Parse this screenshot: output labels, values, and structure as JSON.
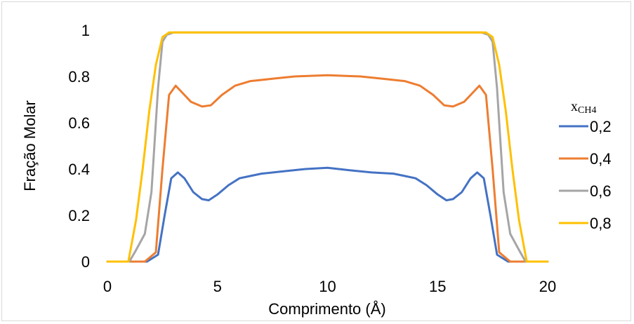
{
  "chart_data": {
    "type": "line",
    "xlabel": "Comprimento (Å)",
    "ylabel": "Fração Molar",
    "xlim": [
      0,
      20
    ],
    "ylim": [
      0,
      1
    ],
    "x_ticks": [
      "0",
      "5",
      "10",
      "15",
      "20"
    ],
    "y_ticks": [
      "0",
      "0.2",
      "0.4",
      "0.6",
      "0.8",
      "1"
    ],
    "legend_title_main": "x",
    "legend_title_sub": "CH4",
    "legend_position": "right",
    "grid": false,
    "series": [
      {
        "name": "0,2",
        "color": "#4472C4",
        "x": [
          0,
          1.8,
          2.3,
          2.6,
          2.9,
          3.2,
          3.5,
          3.9,
          4.3,
          4.6,
          5.0,
          5.5,
          6.0,
          6.5,
          7.0,
          8.0,
          9.0,
          10.0,
          11.0,
          12.0,
          13.0,
          13.5,
          14.0,
          14.5,
          15.0,
          15.4,
          15.7,
          16.1,
          16.5,
          16.8,
          17.1,
          17.4,
          17.7,
          18.2,
          20
        ],
        "y": [
          0,
          0,
          0.03,
          0.2,
          0.36,
          0.385,
          0.36,
          0.3,
          0.27,
          0.265,
          0.29,
          0.33,
          0.36,
          0.37,
          0.38,
          0.39,
          0.4,
          0.405,
          0.395,
          0.385,
          0.38,
          0.37,
          0.36,
          0.33,
          0.29,
          0.265,
          0.27,
          0.3,
          0.36,
          0.385,
          0.36,
          0.2,
          0.03,
          0,
          0
        ]
      },
      {
        "name": "0,4",
        "color": "#ED7D31",
        "x": [
          0,
          1.7,
          2.2,
          2.5,
          2.8,
          3.1,
          3.4,
          3.8,
          4.3,
          4.7,
          5.2,
          5.8,
          6.5,
          7.5,
          8.5,
          10.0,
          11.5,
          12.5,
          13.5,
          14.2,
          14.8,
          15.3,
          15.7,
          16.2,
          16.6,
          16.9,
          17.2,
          17.5,
          17.8,
          18.3,
          20
        ],
        "y": [
          0,
          0,
          0.04,
          0.4,
          0.72,
          0.76,
          0.73,
          0.69,
          0.67,
          0.675,
          0.72,
          0.76,
          0.78,
          0.79,
          0.8,
          0.805,
          0.8,
          0.79,
          0.78,
          0.76,
          0.72,
          0.675,
          0.67,
          0.69,
          0.73,
          0.76,
          0.72,
          0.4,
          0.04,
          0,
          0
        ]
      },
      {
        "name": "0,6",
        "color": "#A5A5A5",
        "x": [
          0,
          1.0,
          1.3,
          1.7,
          2.0,
          2.3,
          2.5,
          2.7,
          3.0,
          4.0,
          10.0,
          16.0,
          17.0,
          17.3,
          17.5,
          17.7,
          18.0,
          18.3,
          18.7,
          19.0,
          20
        ],
        "y": [
          0,
          0,
          0.05,
          0.12,
          0.3,
          0.75,
          0.95,
          0.98,
          0.99,
          0.99,
          0.99,
          0.99,
          0.99,
          0.98,
          0.95,
          0.75,
          0.3,
          0.12,
          0.05,
          0,
          0
        ]
      },
      {
        "name": "0,8",
        "color": "#FFC000",
        "x": [
          0,
          0.95,
          1.3,
          1.6,
          1.9,
          2.2,
          2.5,
          2.8,
          3.2,
          5.0,
          10.0,
          15.0,
          16.8,
          17.2,
          17.5,
          17.8,
          18.1,
          18.4,
          18.7,
          19.05,
          20
        ],
        "y": [
          0,
          0,
          0.18,
          0.4,
          0.65,
          0.85,
          0.97,
          0.99,
          0.99,
          0.99,
          0.99,
          0.99,
          0.99,
          0.99,
          0.97,
          0.85,
          0.65,
          0.4,
          0.18,
          0,
          0
        ]
      }
    ]
  }
}
